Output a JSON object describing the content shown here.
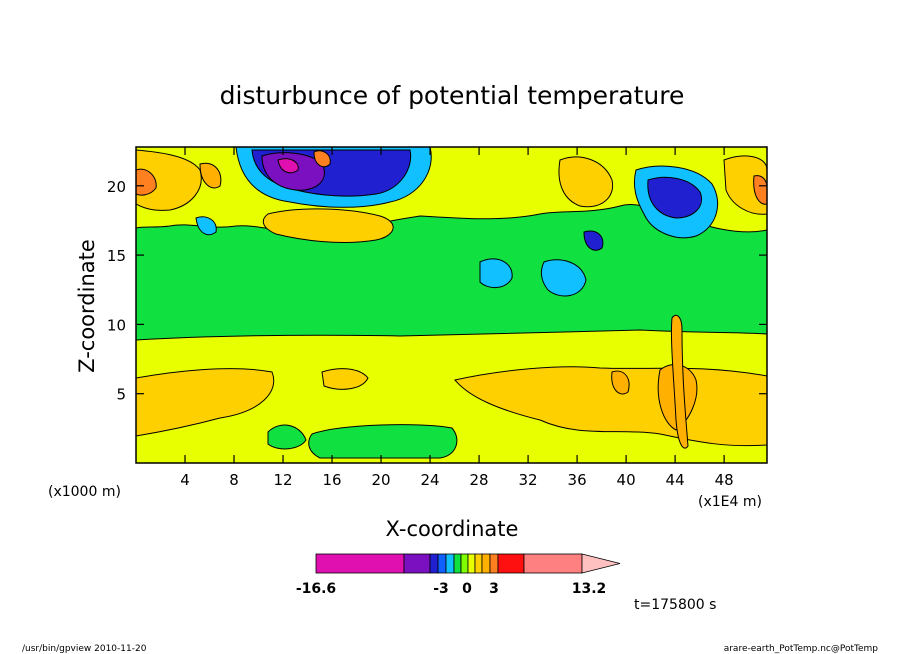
{
  "chart_data": {
    "type": "heatmap",
    "title": "disturbunce of potential temperature",
    "xlabel": "X-coordinate",
    "ylabel": "Z-coordinate",
    "x_unit_left": "(x1000 m)",
    "x_unit_right": "(x1E4 m)",
    "xlim": [
      0,
      51.5
    ],
    "ylim": [
      0,
      22.8
    ],
    "x_ticks": [
      4,
      8,
      12,
      16,
      20,
      24,
      28,
      32,
      36,
      40,
      44,
      48
    ],
    "y_ticks": [
      5,
      10,
      15,
      20
    ],
    "x_tick_labels": [
      "4",
      "8",
      "12",
      "16",
      "20",
      "24",
      "28",
      "32",
      "36",
      "40",
      "44",
      "48"
    ],
    "y_tick_labels": [
      "5",
      "10",
      "15",
      "20"
    ],
    "colorbar": {
      "min": -16.6,
      "max": 13.2,
      "labels": [
        "-16.6",
        "-3",
        "0",
        "3",
        "13.2"
      ],
      "colors": [
        "#e010b0",
        "#7a10c0",
        "#2020d0",
        "#1060ff",
        "#10c0ff",
        "#10e040",
        "#80ff00",
        "#e8ff00",
        "#ffd000",
        "#ffb000",
        "#ff8020",
        "#ff1010",
        "#ff8080",
        "#ffc0c0"
      ]
    },
    "time_label": "t=175800 s"
  },
  "footer": {
    "left": "/usr/bin/gpview  2010-11-20",
    "right": "arare-earth_PotTemp.nc@PotTemp"
  }
}
